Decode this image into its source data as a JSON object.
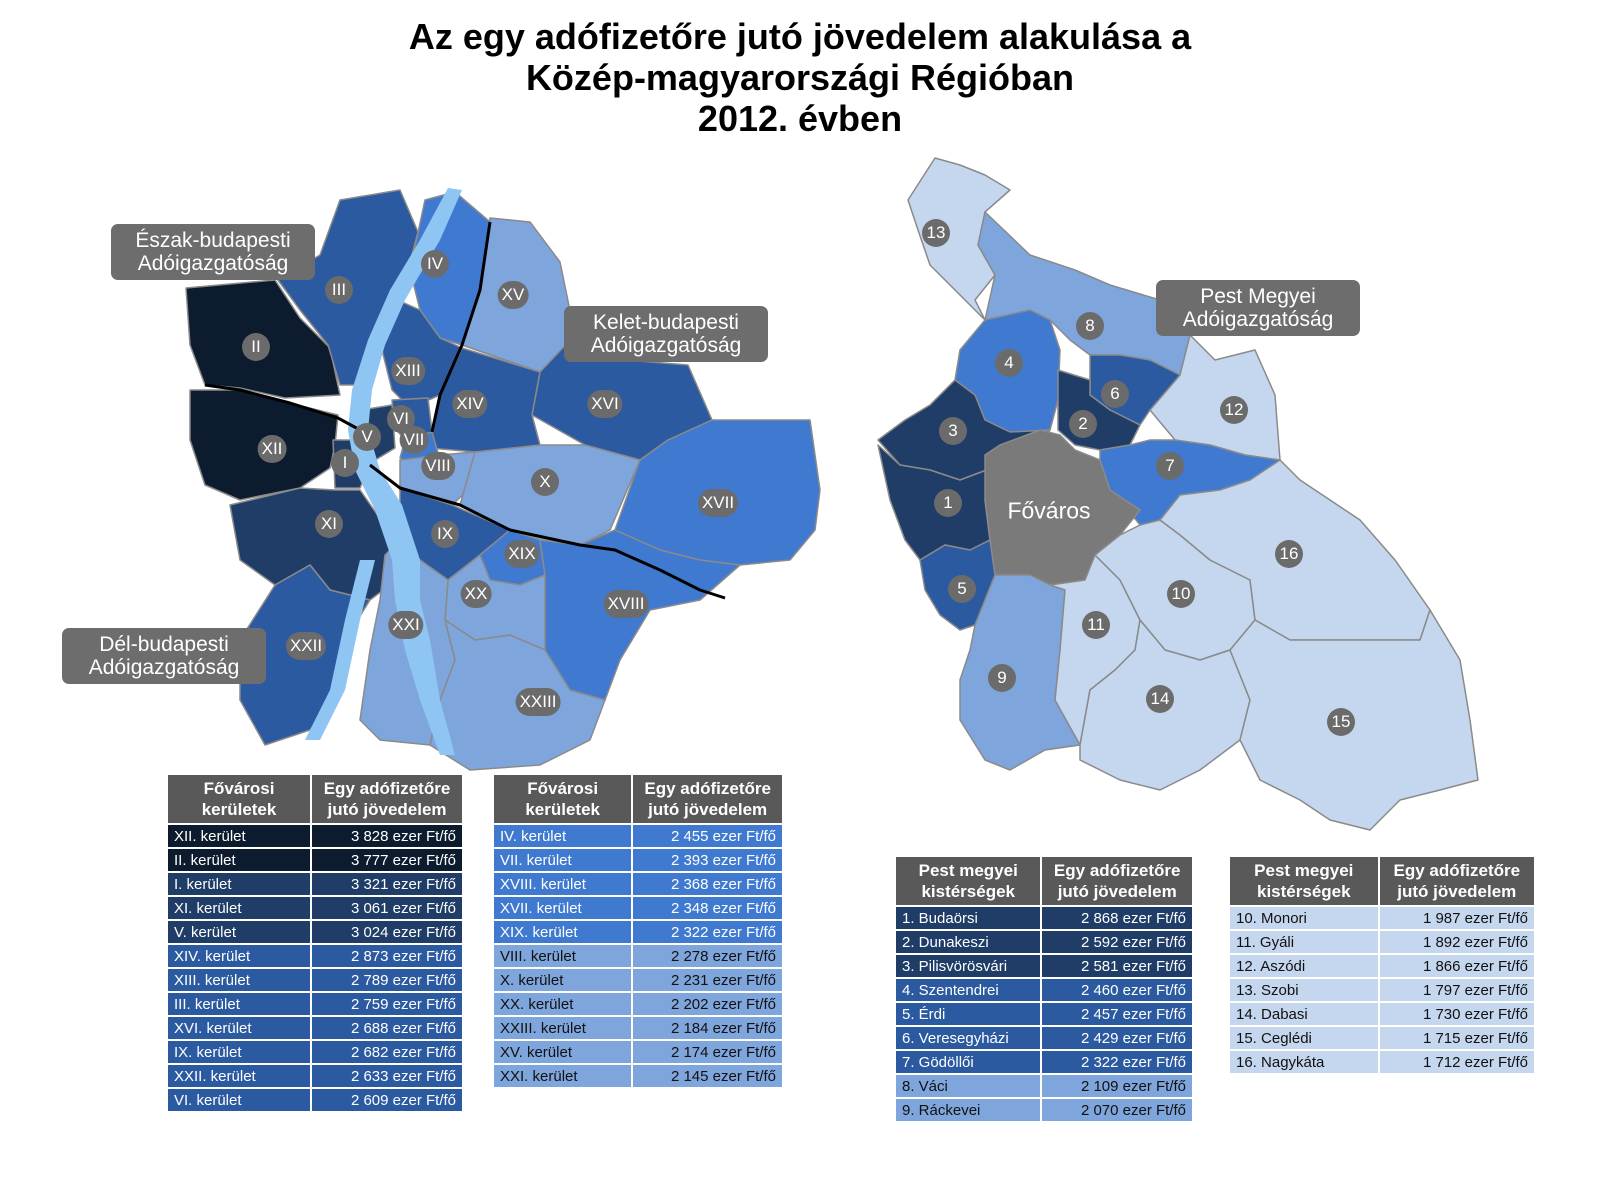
{
  "title": {
    "line1": "Az egy adófizetőre jutó jövedelem alakulása a",
    "line2": "Közép-magyarországi Régióban",
    "line3": "2012. évben"
  },
  "callouts": {
    "north": [
      "Észak-budapesti",
      "Adóigazgatóság"
    ],
    "east": [
      "Kelet-budapesti",
      "Adóigazgatóság"
    ],
    "south": [
      "Dél-budapesti",
      "Adóigazgatóság"
    ],
    "pest": [
      "Pest Megyei",
      "Adóigazgatóság"
    ]
  },
  "budapest_district_labels": [
    "I",
    "II",
    "III",
    "IV",
    "V",
    "VI",
    "VII",
    "VIII",
    "IX",
    "X",
    "XI",
    "XII",
    "XIII",
    "XIV",
    "XV",
    "XVI",
    "XVII",
    "XVIII",
    "XIX",
    "XX",
    "XXI",
    "XXII",
    "XXIII"
  ],
  "pest_labels": [
    "1",
    "2",
    "3",
    "4",
    "5",
    "6",
    "7",
    "8",
    "9",
    "10",
    "11",
    "12",
    "13",
    "14",
    "15",
    "16"
  ],
  "fovaros_label": "Főváros",
  "colors": {
    "level1": "#0d1b2e",
    "level2": "#1f3d67",
    "level3": "#2c5aa0",
    "level4": "#3f7ad0",
    "level5": "#7ea6dc",
    "level6": "#c5d7ef",
    "fovaros": "#7a7a7a",
    "river": "#8ec5f2",
    "header": "#595959"
  },
  "tables": {
    "budapest_header": [
      "Fővárosi\nkerületek",
      "Egy adófizetőre\njutó jövedelem"
    ],
    "pest_header": [
      "Pest megyei\nkistérségek",
      "Egy adófizetőre\njutó jövedelem"
    ],
    "budapest_left": [
      {
        "name": "XII. kerület",
        "value": "3 828 ezer Ft/fő",
        "level": 1
      },
      {
        "name": "II. kerület",
        "value": "3 777 ezer Ft/fő",
        "level": 1
      },
      {
        "name": "I. kerület",
        "value": "3 321 ezer Ft/fő",
        "level": 2
      },
      {
        "name": "XI. kerület",
        "value": "3 061 ezer Ft/fő",
        "level": 2
      },
      {
        "name": "V. kerület",
        "value": "3 024 ezer Ft/fő",
        "level": 2
      },
      {
        "name": "XIV. kerület",
        "value": "2 873 ezer Ft/fő",
        "level": 3
      },
      {
        "name": "XIII. kerület",
        "value": "2 789 ezer Ft/fő",
        "level": 3
      },
      {
        "name": "III. kerület",
        "value": "2 759 ezer Ft/fő",
        "level": 3
      },
      {
        "name": "XVI. kerület",
        "value": "2 688 ezer Ft/fő",
        "level": 3
      },
      {
        "name": "IX. kerület",
        "value": "2 682 ezer Ft/fő",
        "level": 3
      },
      {
        "name": "XXII. kerület",
        "value": "2 633 ezer Ft/fő",
        "level": 3
      },
      {
        "name": "VI. kerület",
        "value": "2 609 ezer Ft/fő",
        "level": 3
      }
    ],
    "budapest_right": [
      {
        "name": "IV. kerület",
        "value": "2 455 ezer Ft/fő",
        "level": 4
      },
      {
        "name": "VII. kerület",
        "value": "2 393 ezer Ft/fő",
        "level": 4
      },
      {
        "name": "XVIII. kerület",
        "value": "2 368 ezer Ft/fő",
        "level": 4
      },
      {
        "name": "XVII. kerület",
        "value": "2 348 ezer Ft/fő",
        "level": 4
      },
      {
        "name": "XIX. kerület",
        "value": "2 322 ezer Ft/fő",
        "level": 4
      },
      {
        "name": "VIII. kerület",
        "value": "2 278 ezer Ft/fő",
        "level": 5
      },
      {
        "name": "X. kerület",
        "value": "2 231 ezer Ft/fő",
        "level": 5
      },
      {
        "name": "XX. kerület",
        "value": "2 202 ezer Ft/fő",
        "level": 5
      },
      {
        "name": "XXIII. kerület",
        "value": "2 184 ezer Ft/fő",
        "level": 5
      },
      {
        "name": "XV. kerület",
        "value": "2 174 ezer Ft/fő",
        "level": 5
      },
      {
        "name": "XXI. kerület",
        "value": "2 145 ezer Ft/fő",
        "level": 5
      }
    ],
    "pest_left": [
      {
        "name": "1. Budaörsi",
        "value": "2 868 ezer Ft/fő",
        "level": 2
      },
      {
        "name": "2. Dunakeszi",
        "value": "2 592 ezer Ft/fő",
        "level": 2
      },
      {
        "name": "3. Pilisvörösvári",
        "value": "2 581 ezer Ft/fő",
        "level": 2
      },
      {
        "name": "4. Szentendrei",
        "value": "2 460 ezer Ft/fő",
        "level": 3
      },
      {
        "name": "5. Érdi",
        "value": "2 457 ezer Ft/fő",
        "level": 3
      },
      {
        "name": "6. Veresegyházi",
        "value": "2 429 ezer Ft/fő",
        "level": 3
      },
      {
        "name": "7. Gödöllői",
        "value": "2 322 ezer Ft/fő",
        "level": 3
      },
      {
        "name": "8. Váci",
        "value": "2 109 ezer Ft/fő",
        "level": 5
      },
      {
        "name": "9. Ráckevei",
        "value": "2 070 ezer Ft/fő",
        "level": 5
      }
    ],
    "pest_right": [
      {
        "name": "10. Monori",
        "value": "1 987 ezer Ft/fő",
        "level": 6
      },
      {
        "name": "11. Gyáli",
        "value": "1 892 ezer Ft/fő",
        "level": 6
      },
      {
        "name": "12. Aszódi",
        "value": "1 866 ezer Ft/fő",
        "level": 6
      },
      {
        "name": "13. Szobi",
        "value": "1 797 ezer Ft/fő",
        "level": 6
      },
      {
        "name": "14. Dabasi",
        "value": "1 730 ezer Ft/fő",
        "level": 6
      },
      {
        "name": "15. Ceglédi",
        "value": "1 715 ezer Ft/fő",
        "level": 6
      },
      {
        "name": "16. Nagykáta",
        "value": "1 712 ezer Ft/fő",
        "level": 6
      }
    ]
  }
}
